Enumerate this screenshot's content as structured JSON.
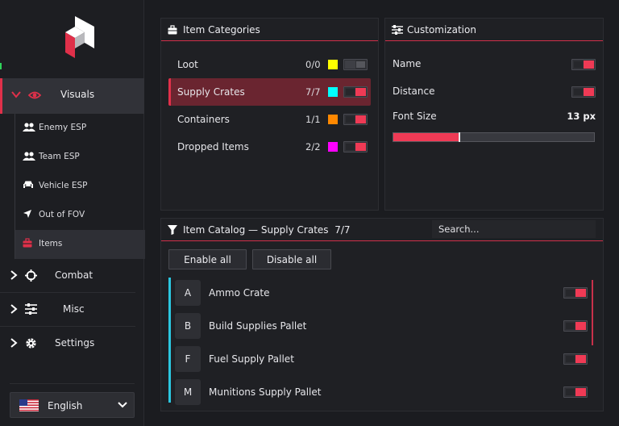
{
  "sidebar": {
    "visuals_label": "Visuals",
    "sub_items": [
      {
        "label": "Enemy ESP",
        "icon": "users-icon"
      },
      {
        "label": "Team ESP",
        "icon": "users-icon"
      },
      {
        "label": "Vehicle ESP",
        "icon": "car-icon"
      },
      {
        "label": "Out of FOV",
        "icon": "location-arrow-icon"
      },
      {
        "label": "Items",
        "icon": "toolbox-icon"
      }
    ],
    "combat_label": "Combat",
    "misc_label": "Misc",
    "settings_label": "Settings",
    "language": "English"
  },
  "categories": {
    "title": "Item Categories",
    "items": [
      {
        "name": "Loot",
        "count": "0/0",
        "color": "#ffff00",
        "enabled": false
      },
      {
        "name": "Supply Crates",
        "count": "7/7",
        "color": "#00ffff",
        "enabled": true
      },
      {
        "name": "Containers",
        "count": "1/1",
        "color": "#ff8800",
        "enabled": true
      },
      {
        "name": "Dropped Items",
        "count": "2/2",
        "color": "#ff00ff",
        "enabled": true
      }
    ]
  },
  "customization": {
    "title": "Customization",
    "name_label": "Name",
    "name_enabled": true,
    "distance_label": "Distance",
    "distance_enabled": true,
    "font_size_label": "Font Size",
    "font_size_value": "13 px",
    "font_size_fraction": 0.33
  },
  "catalog": {
    "title": "Item Catalog — Supply Crates",
    "count": "7/7",
    "search_placeholder": "Search...",
    "enable_all_label": "Enable all",
    "disable_all_label": "Disable all",
    "items": [
      {
        "letter": "A",
        "name": "Ammo Crate",
        "enabled": true
      },
      {
        "letter": "B",
        "name": "Build Supplies Pallet",
        "enabled": true
      },
      {
        "letter": "F",
        "name": "Fuel Supply Pallet",
        "enabled": true
      },
      {
        "letter": "M",
        "name": "Munitions Supply Pallet",
        "enabled": true
      }
    ]
  },
  "colors": {
    "accent": "#e0304a",
    "list_accent": "#2bc6e0"
  }
}
